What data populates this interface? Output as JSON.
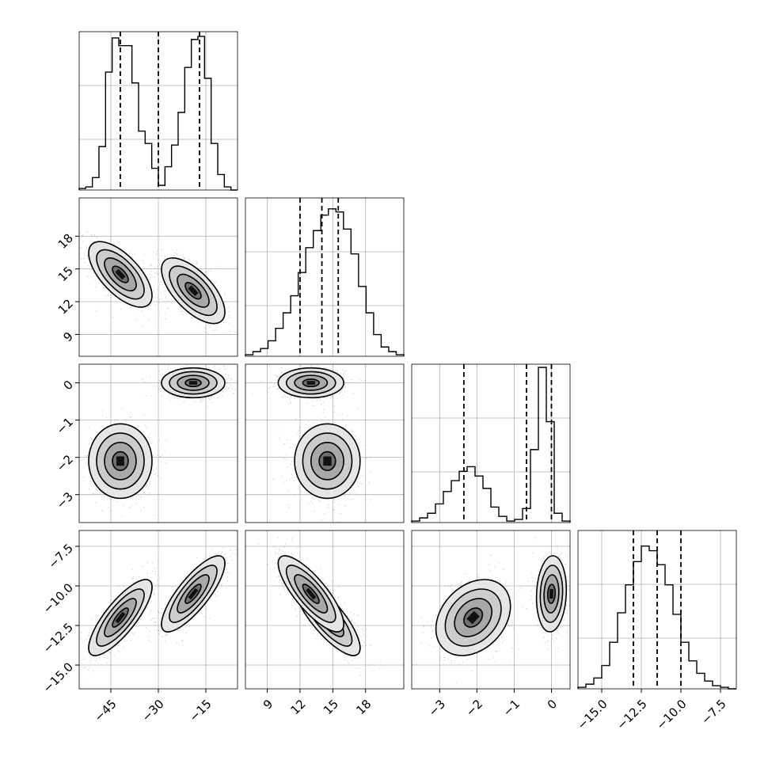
{
  "chart_data": {
    "type": "corner",
    "n_params": 4,
    "grid": true,
    "params": [
      {
        "range": [
          -55,
          -5
        ],
        "ticks": [
          -45,
          -30,
          -15
        ],
        "tick_labels": [
          "−45",
          "−30",
          "−15"
        ],
        "quantiles": [
          -42,
          -30,
          -17
        ],
        "hist": [
          0.01,
          0.02,
          0.08,
          0.28,
          0.76,
          0.98,
          0.93,
          0.93,
          0.69,
          0.38,
          0.3,
          0.14,
          0.03,
          0.15,
          0.29,
          0.5,
          0.79,
          0.97,
          0.99,
          0.72,
          0.3,
          0.1,
          0.02,
          0.0
        ]
      },
      {
        "range": [
          7,
          21.5
        ],
        "ticks": [
          9,
          12,
          15,
          18
        ],
        "tick_labels": [
          "9",
          "12",
          "15",
          "18"
        ],
        "quantiles": [
          12.0,
          14.0,
          15.5
        ],
        "hist": [
          0.01,
          0.03,
          0.05,
          0.1,
          0.18,
          0.28,
          0.39,
          0.54,
          0.7,
          0.81,
          0.91,
          0.95,
          0.93,
          0.82,
          0.66,
          0.45,
          0.28,
          0.14,
          0.06,
          0.03,
          0.01
        ]
      },
      {
        "range": [
          -3.75,
          0.5
        ],
        "ticks": [
          -3,
          -2,
          -1,
          0
        ],
        "tick_labels": [
          "−3",
          "−2",
          "−1",
          "0"
        ],
        "quantiles": [
          -2.35,
          -0.67,
          0.0
        ],
        "hist": [
          0.01,
          0.03,
          0.06,
          0.12,
          0.2,
          0.27,
          0.33,
          0.36,
          0.3,
          0.22,
          0.1,
          0.04,
          0.01,
          0.02,
          0.09,
          0.47,
          1.0,
          0.65,
          0.06,
          0.01
        ]
      },
      {
        "range": [
          -16.5,
          -6.5
        ],
        "ticks": [
          -15.0,
          -12.5,
          -10.0,
          -7.5
        ],
        "tick_labels": [
          "−15.0",
          "−12.5",
          "−10.0",
          "−7.5"
        ],
        "quantiles": [
          -13.0,
          -11.5,
          -10.0
        ],
        "hist": [
          0.01,
          0.03,
          0.07,
          0.15,
          0.3,
          0.49,
          0.67,
          0.82,
          0.92,
          0.89,
          0.8,
          0.67,
          0.48,
          0.3,
          0.18,
          0.1,
          0.05,
          0.02,
          0.01,
          0.0
        ]
      }
    ],
    "y_tick_labels": {
      "1": {
        "ticks": [
          9,
          12,
          15,
          18
        ],
        "labels": [
          "9",
          "12",
          "15",
          "18"
        ]
      },
      "2": {
        "ticks": [
          -3,
          -2,
          -1,
          0
        ],
        "labels": [
          "−3",
          "−2",
          "−1",
          "0"
        ]
      },
      "3": {
        "ticks": [
          -15.0,
          -12.5,
          -10.0,
          -7.5
        ],
        "labels": [
          "−15.0",
          "−12.5",
          "−10.0",
          "−7.5"
        ]
      }
    },
    "mixture": {
      "modes": [
        {
          "weight": 0.5,
          "mean": [
            -42,
            14.5,
            -2.1,
            -12.0
          ],
          "sd": [
            5.0,
            1.5,
            0.5,
            1.2
          ],
          "corr": {
            "0_1": -0.65,
            "0_3": 0.8,
            "1_3": -0.8,
            "2_3": 0.3
          }
        },
        {
          "weight": 0.5,
          "mean": [
            -19,
            13.0,
            0.0,
            -10.5
          ],
          "sd": [
            5.0,
            1.5,
            0.2,
            1.2
          ],
          "corr": {
            "0_1": -0.65,
            "0_3": 0.8,
            "1_3": -0.8,
            "2_3": 0.1
          }
        }
      ]
    }
  }
}
